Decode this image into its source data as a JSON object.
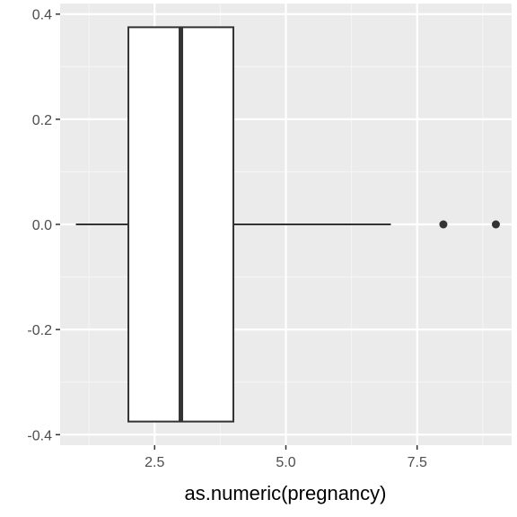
{
  "chart_data": {
    "type": "boxplot",
    "orientation": "horizontal",
    "xlabel": "as.numeric(pregnancy)",
    "ylabel": "",
    "xlim": [
      0.7,
      9.3
    ],
    "ylim": [
      -0.42,
      0.42
    ],
    "x_ticks": [
      2.5,
      5.0,
      7.5
    ],
    "x_tick_labels": [
      "2.5",
      "5.0",
      "7.5"
    ],
    "x_minor_ticks": [
      1.25,
      3.75,
      6.25,
      8.75
    ],
    "y_ticks": [
      -0.4,
      -0.2,
      0.0,
      0.2,
      0.4
    ],
    "y_tick_labels": [
      "-0.4",
      "-0.2",
      "0.0",
      "0.2",
      "0.4"
    ],
    "y_minor_ticks": [
      -0.3,
      -0.1,
      0.1,
      0.3
    ],
    "grid": true,
    "box": {
      "y_center": 0.0,
      "y_half_width": 0.375,
      "whisker_low": 1,
      "q1": 2,
      "median": 3,
      "q3": 4,
      "whisker_high": 7
    },
    "outliers": [
      8,
      9
    ],
    "colors": {
      "panel_background": "#ebebeb",
      "grid_major": "#ffffff",
      "grid_minor": "#f5f5f5",
      "box_fill": "#ffffff",
      "box_outline": "#333333",
      "median_line": "#333333",
      "outlier": "#333333",
      "tick_mark": "#333333",
      "tick_label": "#4d4d4d"
    }
  }
}
